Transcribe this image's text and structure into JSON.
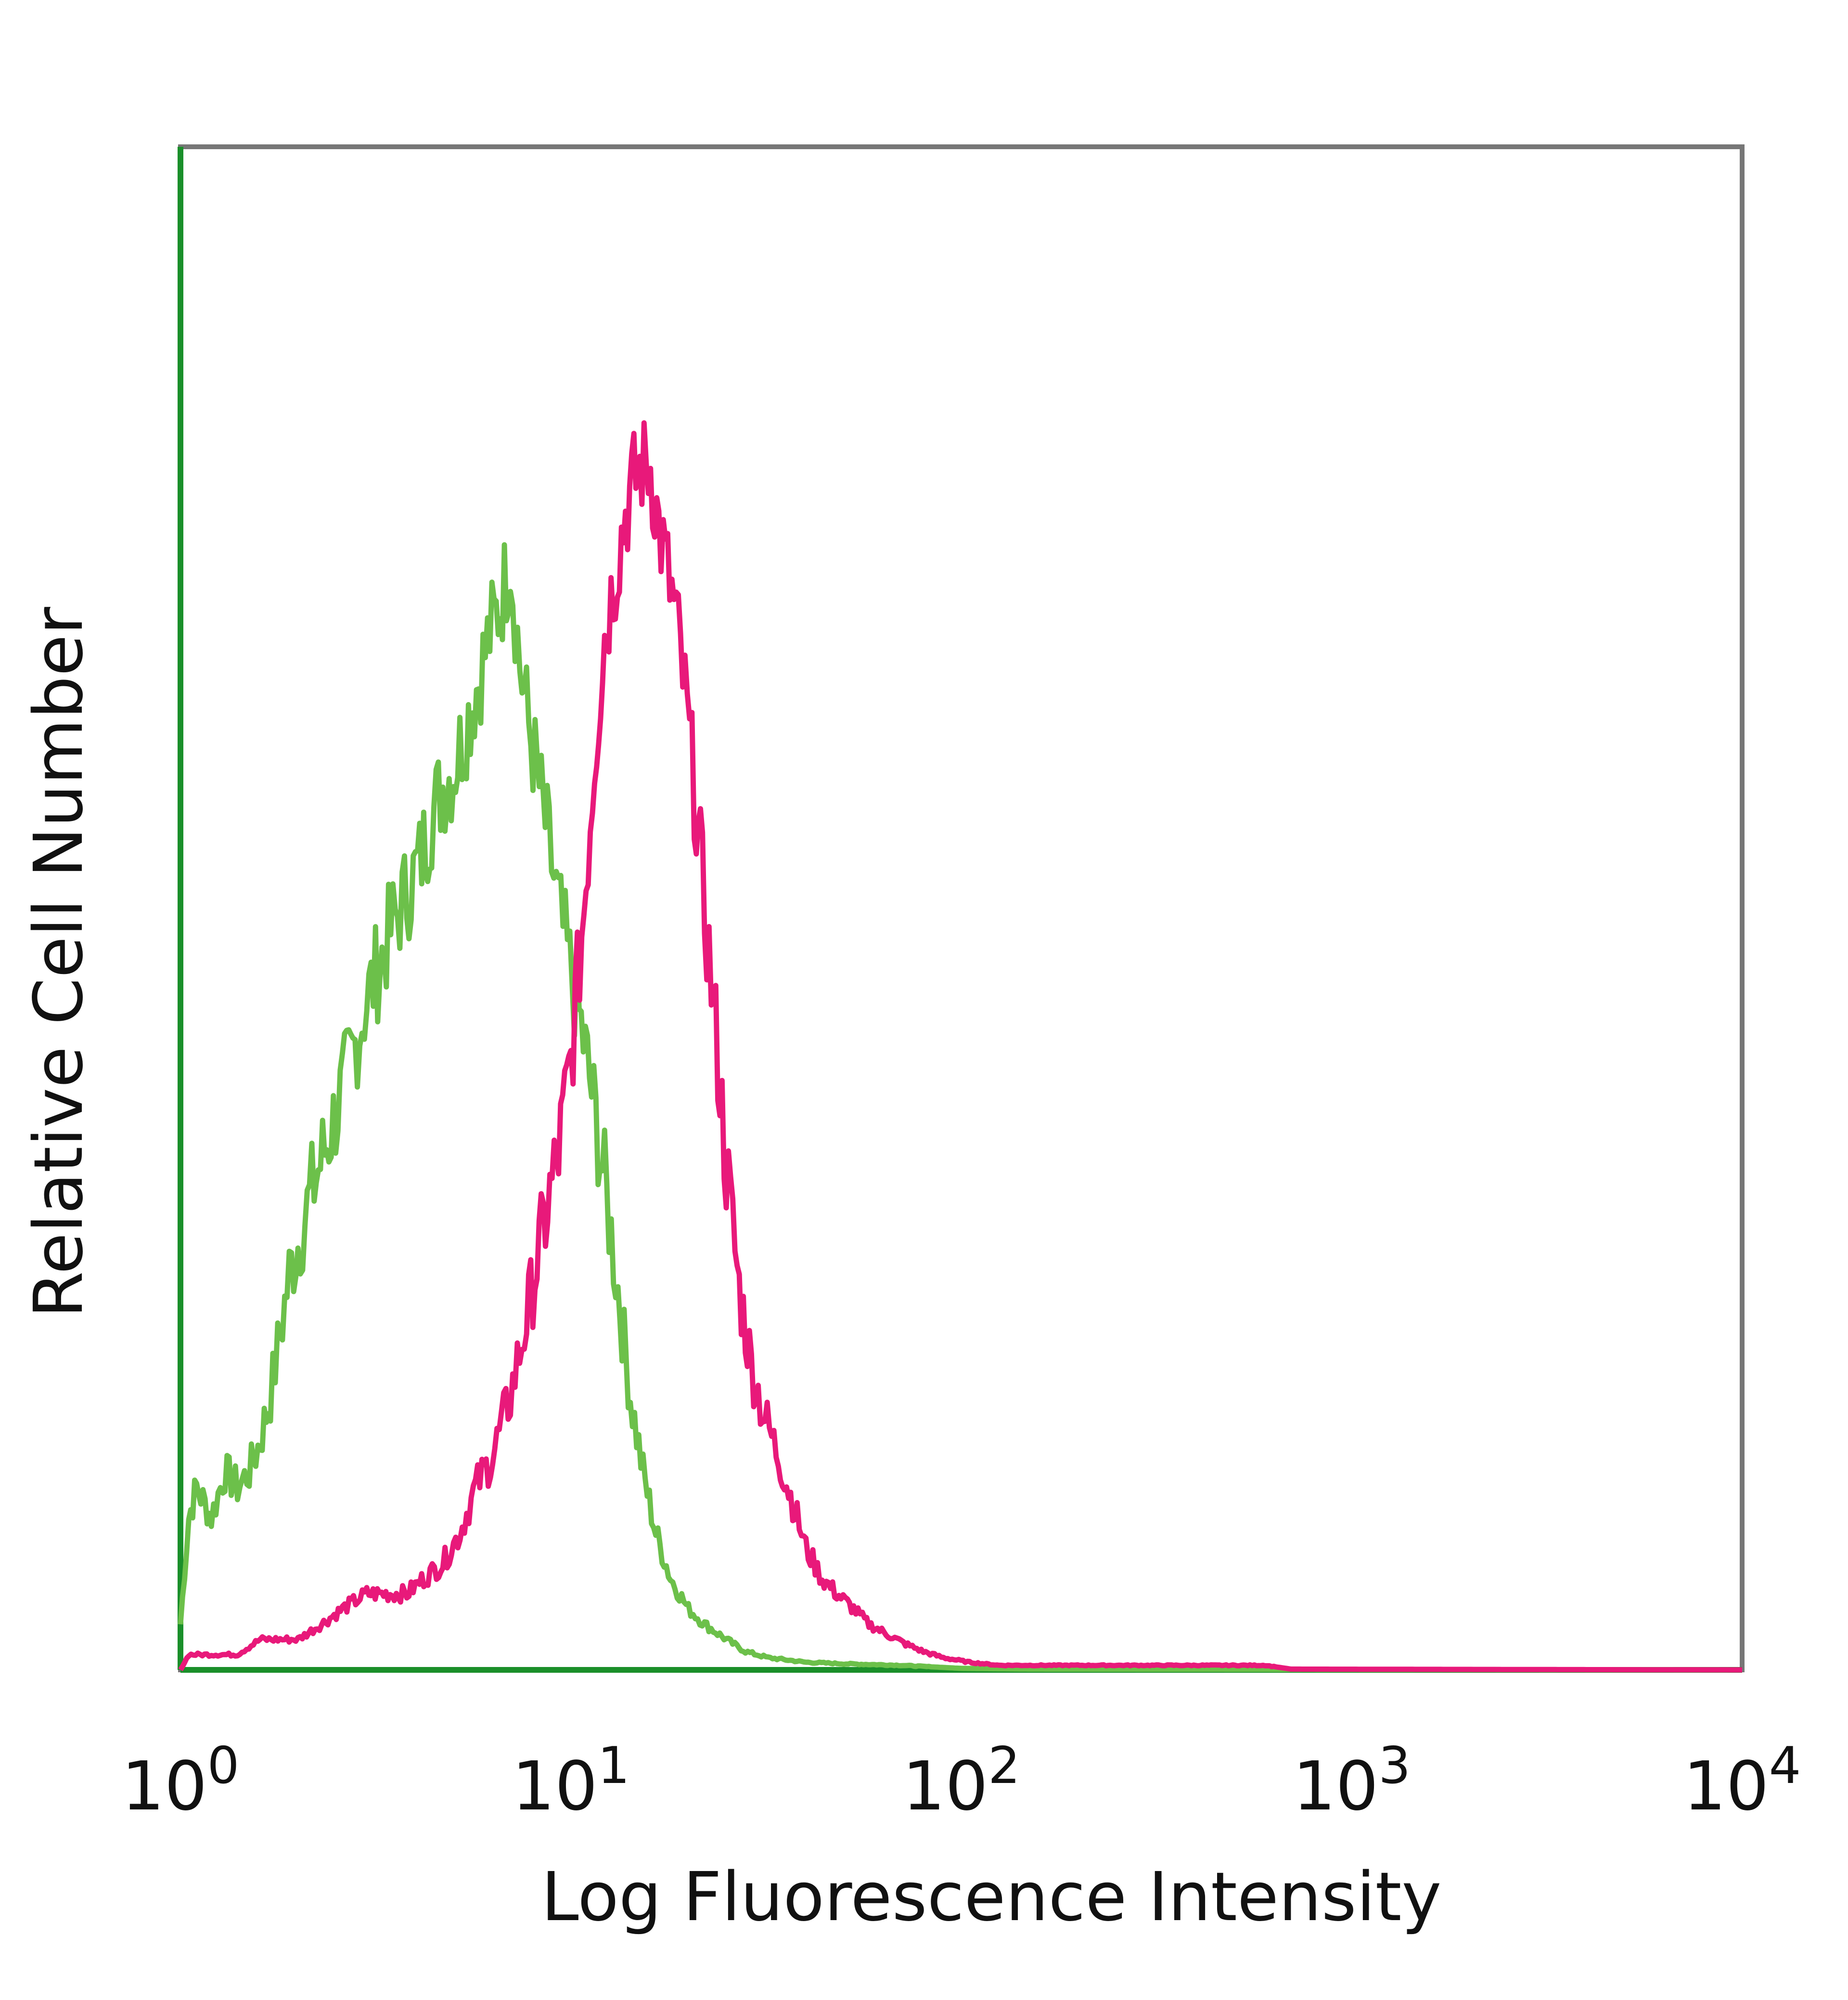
{
  "chart_data": {
    "type": "line",
    "title": "",
    "xlabel": "Log Fluorescence Intensity",
    "ylabel": "Relative Cell Number",
    "x_scale": "log",
    "xlim": [
      1,
      10000
    ],
    "ylim": [
      0,
      100
    ],
    "grid": false,
    "legend": "none",
    "x_ticks": [
      {
        "base": "10",
        "exp": "0",
        "value": 1
      },
      {
        "base": "10",
        "exp": "1",
        "value": 10
      },
      {
        "base": "10",
        "exp": "2",
        "value": 100
      },
      {
        "base": "10",
        "exp": "3",
        "value": 1000
      },
      {
        "base": "10",
        "exp": "4",
        "value": 10000
      }
    ],
    "series": [
      {
        "color": "#6cc04a",
        "points": [
          [
            1.0,
            3
          ],
          [
            1.05,
            10
          ],
          [
            1.1,
            12
          ],
          [
            1.2,
            10
          ],
          [
            1.3,
            13
          ],
          [
            1.4,
            12
          ],
          [
            1.5,
            13
          ],
          [
            1.6,
            15
          ],
          [
            1.7,
            18
          ],
          [
            1.8,
            22
          ],
          [
            1.9,
            26
          ],
          [
            2.0,
            28
          ],
          [
            2.2,
            32
          ],
          [
            2.4,
            35
          ],
          [
            2.6,
            38
          ],
          [
            2.8,
            41
          ],
          [
            3.0,
            44
          ],
          [
            3.2,
            46
          ],
          [
            3.5,
            49
          ],
          [
            3.8,
            51
          ],
          [
            4.1,
            53
          ],
          [
            4.4,
            56
          ],
          [
            4.7,
            58
          ],
          [
            5.0,
            59
          ],
          [
            5.4,
            62
          ],
          [
            5.8,
            65
          ],
          [
            6.2,
            68
          ],
          [
            6.6,
            70
          ],
          [
            7.0,
            73
          ],
          [
            7.4,
            66
          ],
          [
            7.8,
            62
          ],
          [
            8.3,
            58
          ],
          [
            8.8,
            54
          ],
          [
            9.3,
            50
          ],
          [
            9.8,
            47
          ],
          [
            10.5,
            43
          ],
          [
            11.3,
            38
          ],
          [
            12.2,
            32
          ],
          [
            13.2,
            25
          ],
          [
            14.2,
            18
          ],
          [
            15.3,
            13
          ],
          [
            16.5,
            9
          ],
          [
            18,
            6
          ],
          [
            20,
            4
          ],
          [
            22,
            3
          ],
          [
            25,
            2
          ],
          [
            28,
            1.2
          ],
          [
            32,
            0.8
          ],
          [
            40,
            0.5
          ],
          [
            50,
            0.4
          ],
          [
            70,
            0.3
          ],
          [
            100,
            0.1
          ],
          [
            150,
            0.05
          ],
          [
            10000,
            0
          ]
        ]
      },
      {
        "color": "#e8197a",
        "points": [
          [
            1.0,
            0
          ],
          [
            1.05,
            1
          ],
          [
            1.2,
            1
          ],
          [
            1.4,
            1
          ],
          [
            1.6,
            2
          ],
          [
            1.8,
            2
          ],
          [
            2.0,
            2
          ],
          [
            2.3,
            3
          ],
          [
            2.6,
            4
          ],
          [
            3.0,
            5
          ],
          [
            3.4,
            5
          ],
          [
            3.8,
            5
          ],
          [
            4.2,
            6
          ],
          [
            4.7,
            7
          ],
          [
            5.2,
            9
          ],
          [
            5.7,
            12
          ],
          [
            6.3,
            14
          ],
          [
            7.0,
            18
          ],
          [
            7.7,
            23
          ],
          [
            8.5,
            29
          ],
          [
            9.3,
            34
          ],
          [
            10.0,
            40
          ],
          [
            10.8,
            50
          ],
          [
            11.5,
            60
          ],
          [
            12.2,
            68
          ],
          [
            13.0,
            72
          ],
          [
            13.8,
            76
          ],
          [
            14.5,
            78
          ],
          [
            15.2,
            79
          ],
          [
            16.0,
            79
          ],
          [
            16.8,
            75
          ],
          [
            17.7,
            72
          ],
          [
            18.6,
            69
          ],
          [
            19.6,
            64
          ],
          [
            20.7,
            58
          ],
          [
            22,
            50
          ],
          [
            23.5,
            42
          ],
          [
            25,
            33
          ],
          [
            27,
            25
          ],
          [
            29,
            20
          ],
          [
            31,
            17
          ],
          [
            34,
            14
          ],
          [
            37,
            11
          ],
          [
            40,
            8
          ],
          [
            44,
            6
          ],
          [
            48,
            5
          ],
          [
            53,
            4
          ],
          [
            58,
            3
          ],
          [
            65,
            2.3
          ],
          [
            72,
            1.7
          ],
          [
            80,
            1.2
          ],
          [
            90,
            0.8
          ],
          [
            105,
            0.5
          ],
          [
            125,
            0.3
          ],
          [
            160,
            0.3
          ],
          [
            220,
            0.3
          ],
          [
            300,
            0.3
          ],
          [
            420,
            0.3
          ],
          [
            600,
            0.3
          ],
          [
            700,
            0.05
          ],
          [
            10000,
            0
          ]
        ]
      }
    ]
  }
}
